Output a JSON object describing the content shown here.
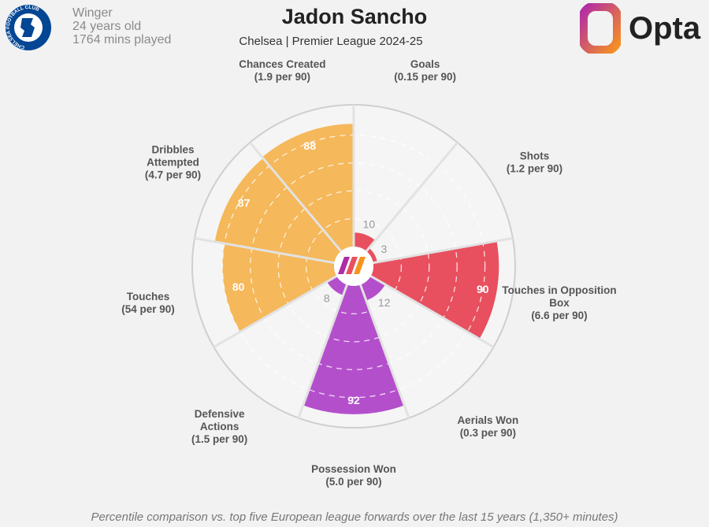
{
  "header": {
    "position": "Winger",
    "age": "24 years old",
    "minutes": "1764 mins played",
    "title": "Jadon Sancho",
    "subtitle": "Chelsea | Premier League 2024-25",
    "logo_text": "Opta",
    "crest_text": "CHELSEA FOOTBALL CLUB"
  },
  "footer": "Percentile comparison vs. top five European league forwards over the last 15 years (1,350+ minutes)",
  "chart_data": {
    "type": "pie",
    "subtype": "polar-percentile",
    "range": [
      0,
      100
    ],
    "categories": [
      {
        "label": "Goals",
        "sub": "(0.15 per 90)",
        "value": 10,
        "color": "#e8505f"
      },
      {
        "label": "Shots",
        "sub": "(1.2 per 90)",
        "value": 3,
        "color": "#e8505f"
      },
      {
        "label": "Touches in Opposition Box",
        "sub": "(6.6 per 90)",
        "value": 90,
        "color": "#e8505f"
      },
      {
        "label": "Aerials Won",
        "sub": "(0.3 per 90)",
        "value": 12,
        "color": "#b44fcc"
      },
      {
        "label": "Possession Won",
        "sub": "(5.0 per 90)",
        "value": 92,
        "color": "#b44fcc"
      },
      {
        "label": "Defensive Actions",
        "sub": "(1.5 per 90)",
        "value": 8,
        "color": "#b44fcc"
      },
      {
        "label": "Touches",
        "sub": "(54 per 90)",
        "value": 80,
        "color": "#f5b85a"
      },
      {
        "label": "Dribbles Attempted",
        "sub": "(4.7 per 90)",
        "value": 87,
        "color": "#f5b85a"
      },
      {
        "label": "Chances Created",
        "sub": "(1.9 per 90)",
        "value": 88,
        "color": "#f5b85a"
      }
    ]
  }
}
